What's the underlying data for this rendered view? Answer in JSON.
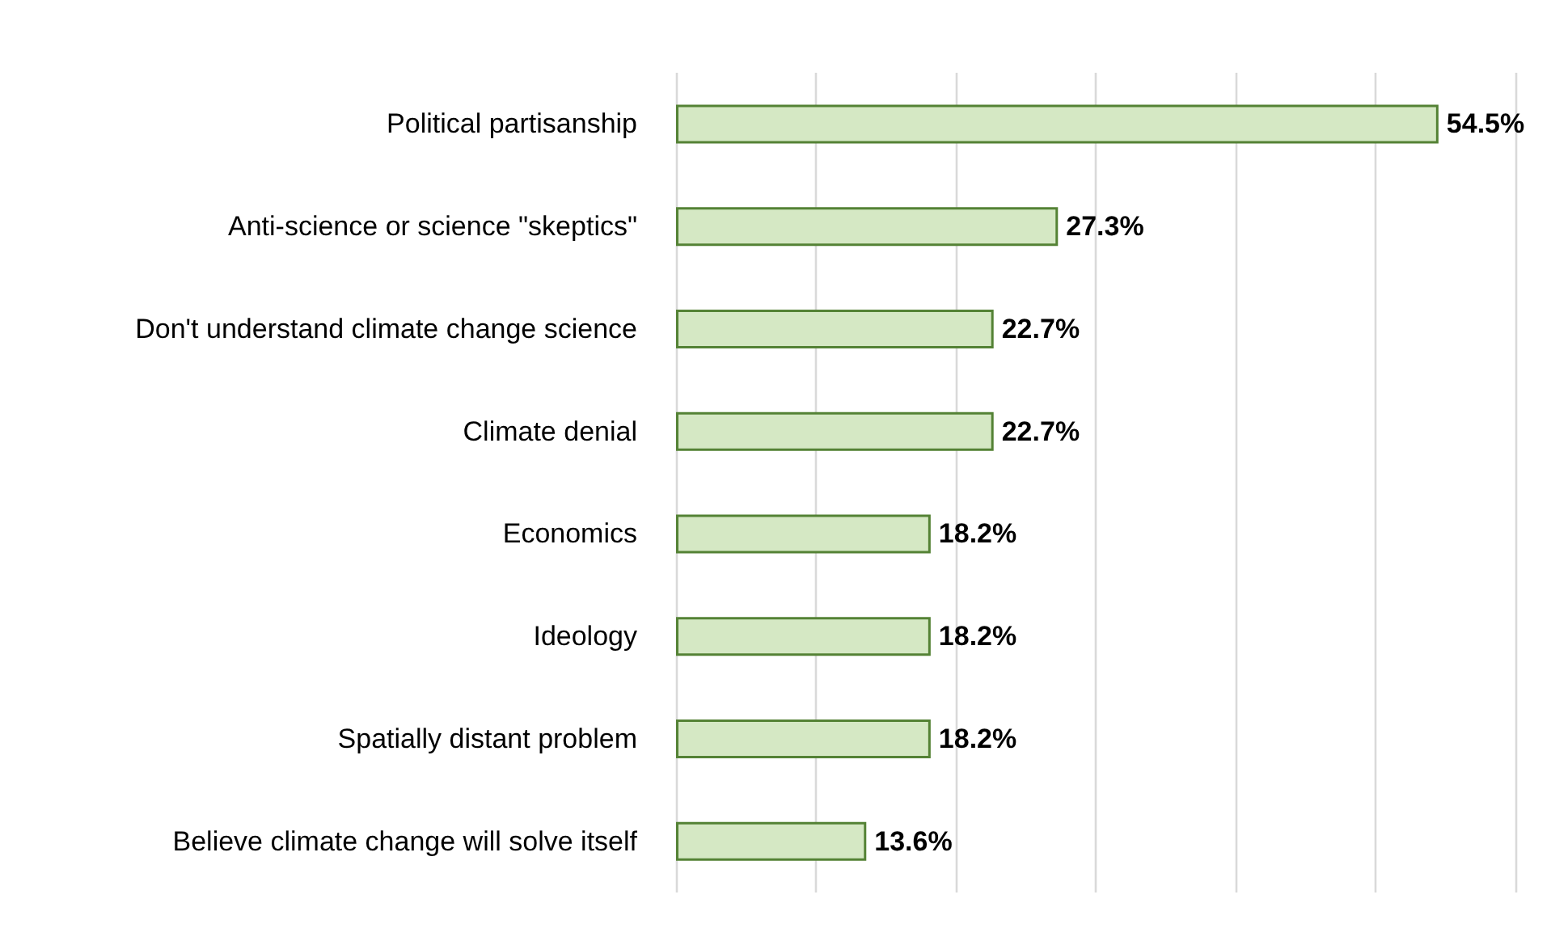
{
  "chart_data": {
    "type": "bar",
    "orientation": "horizontal",
    "categories": [
      "Political partisanship",
      "Anti-science or science \"skeptics\"",
      "Don't understand climate change science",
      "Climate denial",
      "Economics",
      "Ideology",
      "Spatially distant problem",
      "Believe climate change will solve itself"
    ],
    "values": [
      54.5,
      27.3,
      22.7,
      22.7,
      18.2,
      18.2,
      18.2,
      13.6
    ],
    "value_labels": [
      "54.5%",
      "27.3%",
      "22.7%",
      "22.7%",
      "18.2%",
      "18.2%",
      "18.2%",
      "13.6%"
    ],
    "color": "#d5e8c4",
    "xlim": [
      0,
      60
    ],
    "xticks": [
      {
        "value": 0,
        "label": null
      },
      {
        "value": 10,
        "label": null
      },
      {
        "value": 20,
        "label": null
      },
      {
        "value": 30,
        "label": null
      },
      {
        "value": 40,
        "label": null
      },
      {
        "value": 50,
        "label": null
      },
      {
        "value": 60,
        "label": null
      }
    ],
    "grid": "x",
    "tick_labels": "y"
  }
}
